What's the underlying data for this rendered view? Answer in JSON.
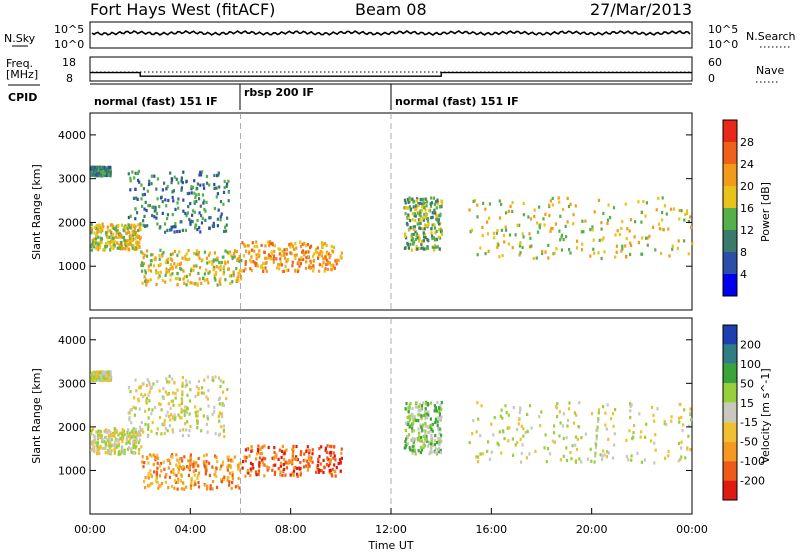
{
  "header": {
    "station": "Fort Hays West (fitACF)",
    "beam": "Beam 08",
    "date": "27/Mar/2013"
  },
  "noise_panel": {
    "left_label": "N.Sky",
    "right_label": "N.Search",
    "left_ticks": [
      "10^5",
      "10^0"
    ],
    "right_ticks": [
      "10^5",
      "10^0"
    ]
  },
  "freq_panel": {
    "left_label_line1": "Freq.",
    "left_label_line2": "[MHz]",
    "left_ticks": [
      "18",
      "8"
    ],
    "right_label": "Nave",
    "right_ticks": [
      "60",
      "0"
    ],
    "frequency_steps": [
      {
        "start_hour": 0.0,
        "end_hour": 2.0,
        "value_mhz": 11.5
      },
      {
        "start_hour": 2.0,
        "end_hour": 14.0,
        "value_mhz": 10.0
      },
      {
        "start_hour": 14.0,
        "end_hour": 24.0,
        "value_mhz": 11.5
      }
    ]
  },
  "cpid_panel": {
    "label": "CPID",
    "segments": [
      {
        "start_hour": 0.0,
        "end_hour": 6.0,
        "text": "normal (fast) 151 IF"
      },
      {
        "start_hour": 6.0,
        "end_hour": 12.0,
        "text": "rbsp 200 IF"
      },
      {
        "start_hour": 12.0,
        "end_hour": 24.0,
        "text": "normal (fast) 151 IF"
      }
    ]
  },
  "chart_data": [
    {
      "type": "heatmap",
      "quantity": "power",
      "ylabel": "Slant Range [km]",
      "ylim": [
        0,
        4500
      ],
      "yticks": [
        "1000",
        "2000",
        "3000",
        "4000"
      ],
      "xlim_hours": [
        0,
        24
      ],
      "colorbar": {
        "label": "Power [dB]",
        "ticks": [
          "4",
          "8",
          "12",
          "16",
          "20",
          "24",
          "28"
        ],
        "colors": [
          "#0000ee",
          "#2b4fa8",
          "#3a7a6a",
          "#55b04a",
          "#e8c31c",
          "#f39a1a",
          "#f0601a",
          "#e82818"
        ]
      },
      "regions": [
        {
          "name": "band-a",
          "t_start": 0.0,
          "t_end": 0.8,
          "r_low": 3100,
          "r_high": 3300,
          "level": 2
        },
        {
          "name": "band-b",
          "t_start": 0.0,
          "t_end": 2.0,
          "r_low": 1400,
          "r_high": 2000,
          "level": 4
        },
        {
          "name": "band-c",
          "t_start": 2.0,
          "t_end": 6.0,
          "r_low": 600,
          "r_high": 1400,
          "level": 4
        },
        {
          "name": "band-d",
          "t_start": 6.0,
          "t_end": 10.0,
          "r_low": 900,
          "r_high": 1600,
          "level": 5
        },
        {
          "name": "band-e",
          "t_start": 1.5,
          "t_end": 5.5,
          "r_low": 1800,
          "r_high": 3200,
          "level": 2
        },
        {
          "name": "band-f",
          "t_start": 12.5,
          "t_end": 14.0,
          "r_low": 1400,
          "r_high": 2600,
          "level": 3
        },
        {
          "name": "band-g",
          "t_start": 15.0,
          "t_end": 24.0,
          "r_low": 1200,
          "r_high": 2600,
          "level": 4
        }
      ]
    },
    {
      "type": "heatmap",
      "quantity": "velocity",
      "ylabel": "Slant Range [km]",
      "ylim": [
        0,
        4500
      ],
      "yticks": [
        "1000",
        "2000",
        "3000",
        "4000"
      ],
      "xlim_hours": [
        0,
        24
      ],
      "colorbar": {
        "label": "Velocity [m s^-1]",
        "ticks": [
          "200",
          "100",
          "50",
          "15",
          "-15",
          "-50",
          "-100",
          "-200"
        ],
        "colors": [
          "#1e3fb0",
          "#2f7e86",
          "#3aa43a",
          "#98d03c",
          "#c8c8c0",
          "#f0c030",
          "#f59a20",
          "#f05a18",
          "#e01a10"
        ]
      },
      "regions": [
        {
          "name": "band-a",
          "t_start": 0.0,
          "t_end": 0.8,
          "r_low": 3100,
          "r_high": 3300,
          "level": 4
        },
        {
          "name": "band-b",
          "t_start": 0.0,
          "t_end": 2.0,
          "r_low": 1400,
          "r_high": 2000,
          "level": 4
        },
        {
          "name": "band-c",
          "t_start": 2.0,
          "t_end": 6.0,
          "r_low": 600,
          "r_high": 1400,
          "level": 6
        },
        {
          "name": "band-d",
          "t_start": 6.0,
          "t_end": 10.0,
          "r_low": 900,
          "r_high": 1600,
          "level": 7
        },
        {
          "name": "band-e",
          "t_start": 1.5,
          "t_end": 5.5,
          "r_low": 1800,
          "r_high": 3200,
          "level": 4
        },
        {
          "name": "band-f",
          "t_start": 12.5,
          "t_end": 14.0,
          "r_low": 1400,
          "r_high": 2600,
          "level": 3
        },
        {
          "name": "band-g",
          "t_start": 15.0,
          "t_end": 24.0,
          "r_low": 1200,
          "r_high": 2600,
          "level": 4
        }
      ]
    }
  ],
  "x_axis": {
    "label": "Time UT",
    "ticks": [
      "00:00",
      "04:00",
      "08:00",
      "12:00",
      "16:00",
      "20:00",
      "00:00"
    ]
  }
}
